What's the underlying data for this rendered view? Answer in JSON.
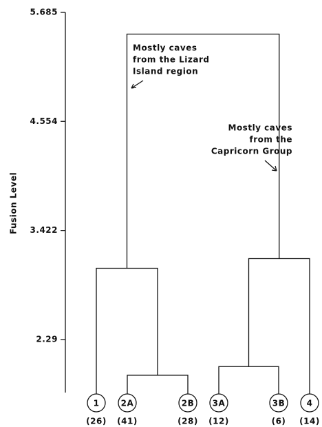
{
  "chart_data": {
    "type": "dendrogram",
    "y_label": "Fusion Level",
    "ylim": [
      1.74,
      5.685
    ],
    "yticks": [
      2.29,
      3.422,
      4.554,
      5.685
    ],
    "leaves": [
      {
        "label": "1",
        "count": "(26)"
      },
      {
        "label": "2A",
        "count": "(41)"
      },
      {
        "label": "2B",
        "count": "(28)"
      },
      {
        "label": "3A",
        "count": "(12)"
      },
      {
        "label": "3B",
        "count": "(6)"
      },
      {
        "label": "4",
        "count": "(14)"
      }
    ],
    "merges": [
      {
        "children": [
          1,
          2
        ],
        "height": 1.92
      },
      {
        "children": [
          0,
          6
        ],
        "height": 3.03
      },
      {
        "children": [
          3,
          4
        ],
        "height": 2.01
      },
      {
        "children": [
          8,
          5
        ],
        "height": 3.13
      },
      {
        "children": [
          7,
          9
        ],
        "height": 5.46
      }
    ],
    "annotations": [
      {
        "lines": [
          "Mostly caves",
          "from the Lizard",
          "Island region"
        ]
      },
      {
        "lines": [
          "Mostly caves",
          "from the",
          "Capricorn Group"
        ]
      }
    ]
  }
}
